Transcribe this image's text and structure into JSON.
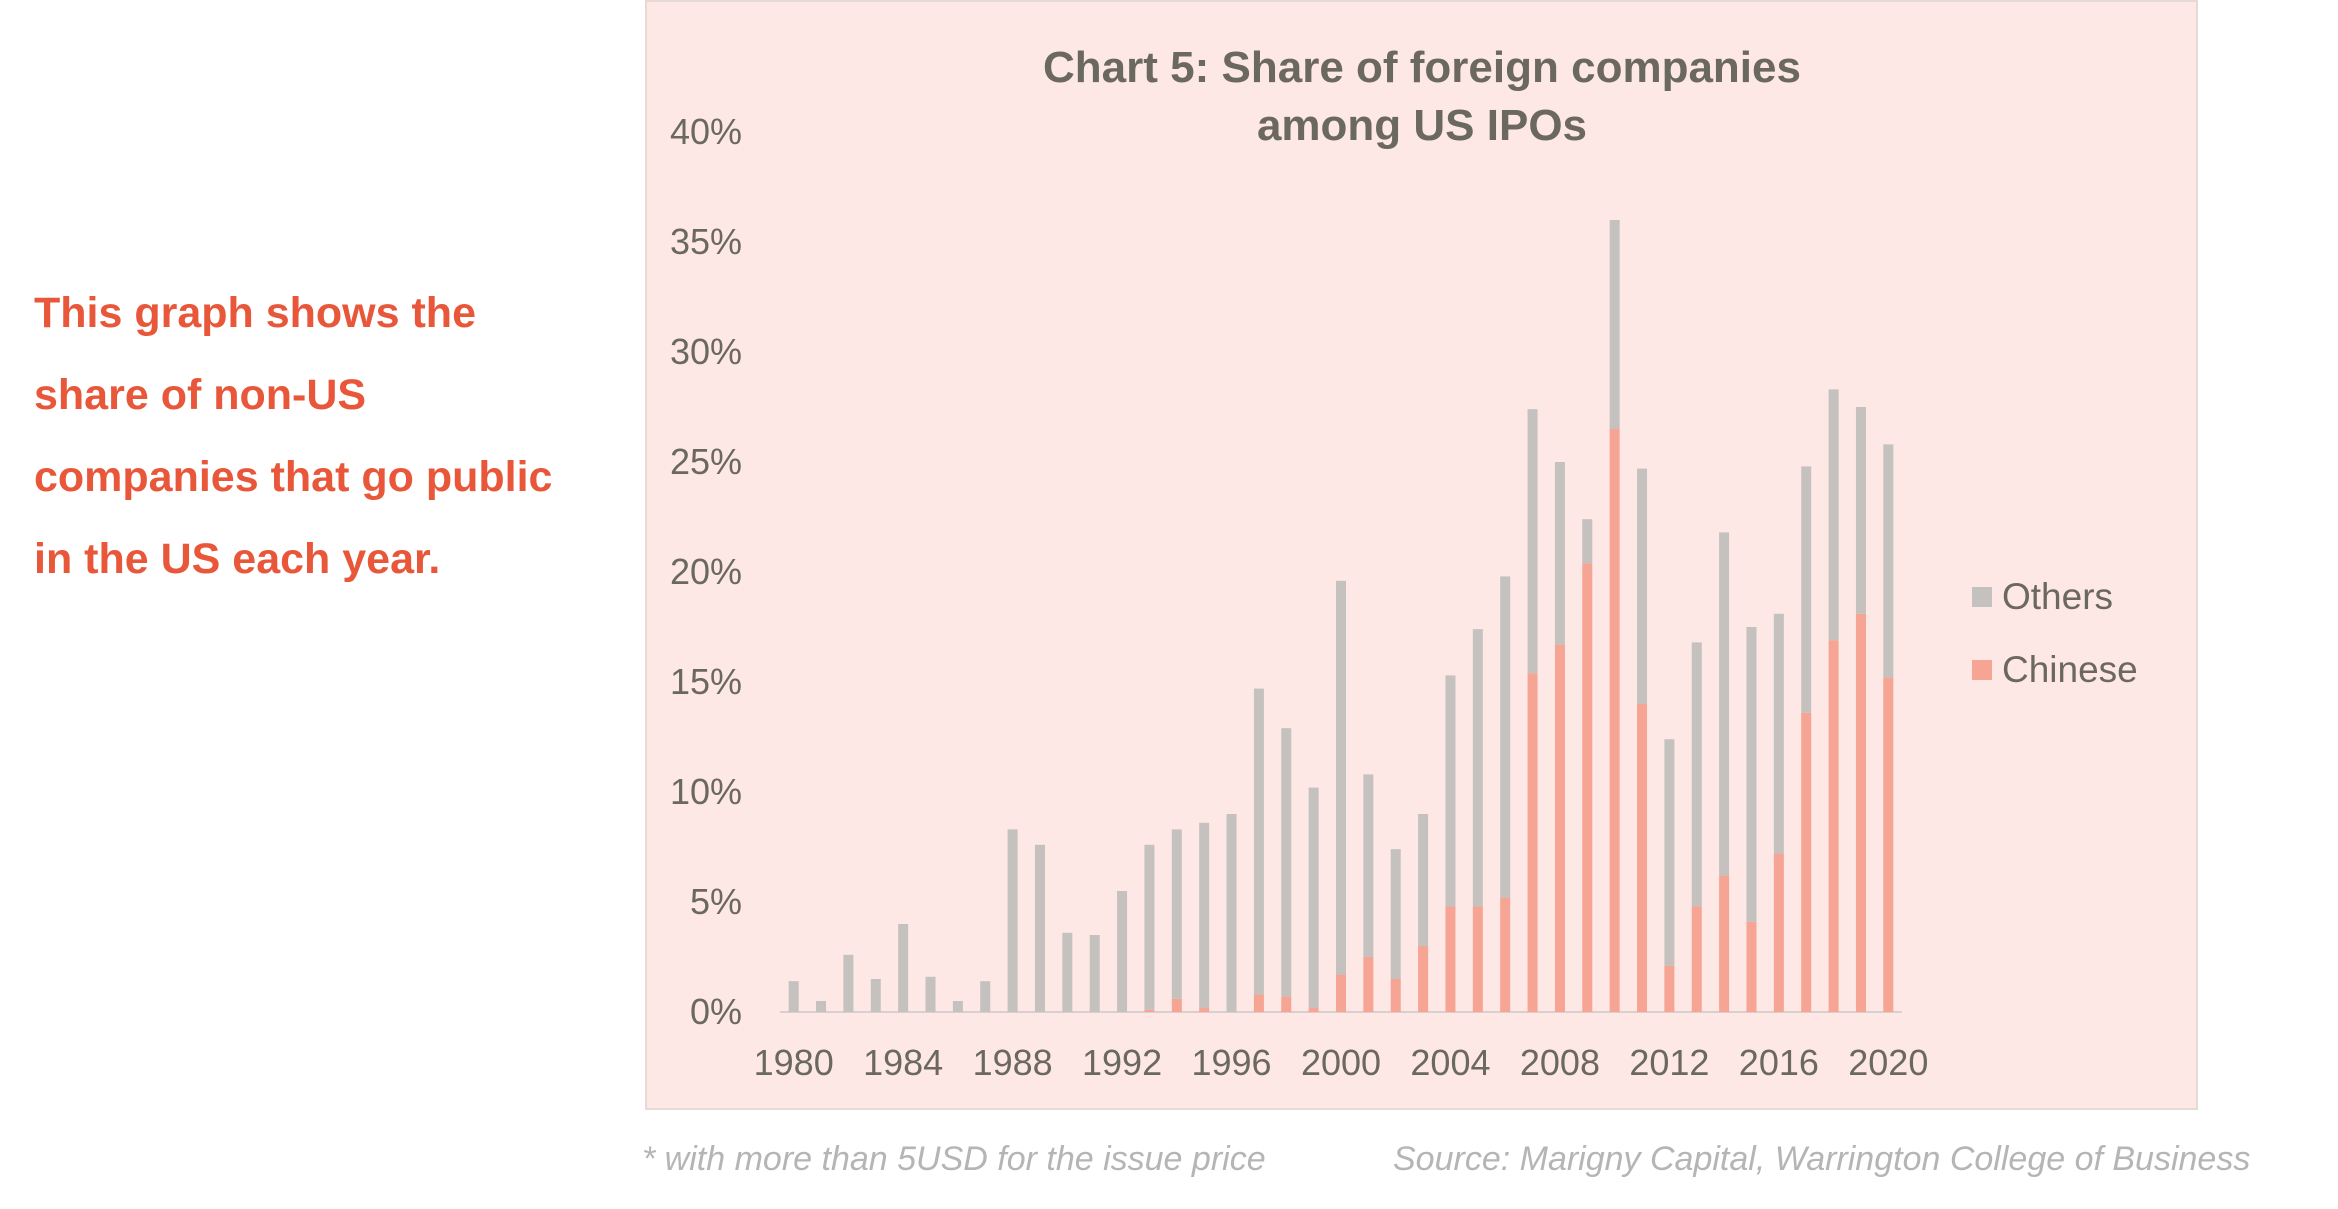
{
  "side_text": "This graph shows the share of non-US companies that go public in the US each year.",
  "footnote_left": "* with more than 5USD for the issue price",
  "footnote_right": "Source: Marigny Capital, Warrington College of Business",
  "colors": {
    "others": "#c4c1bf",
    "chinese": "#f6a493",
    "panel_bg": "#fde8e6",
    "accent_text": "#e8573a",
    "axis_text": "#6b6860"
  },
  "chart_data": {
    "type": "bar",
    "stacked": true,
    "title": "Chart 5: Share of foreign companies among US IPOs",
    "title_lines": [
      "Chart 5: Share of foreign companies",
      "among US IPOs"
    ],
    "xlabel": "",
    "ylabel": "",
    "ylim": [
      0,
      0.4
    ],
    "yticks": [
      0,
      0.05,
      0.1,
      0.15,
      0.2,
      0.25,
      0.3,
      0.35,
      0.4
    ],
    "ytick_labels": [
      "0%",
      "5%",
      "10%",
      "15%",
      "20%",
      "25%",
      "30%",
      "35%",
      "40%"
    ],
    "xtick_labels": [
      "1980",
      "1984",
      "1988",
      "1992",
      "1996",
      "2000",
      "2004",
      "2008",
      "2012",
      "2016",
      "2020"
    ],
    "legend_position": "right",
    "categories": [
      1980,
      1981,
      1982,
      1983,
      1984,
      1985,
      1986,
      1987,
      1988,
      1989,
      1990,
      1991,
      1992,
      1993,
      1994,
      1995,
      1996,
      1997,
      1998,
      1999,
      2000,
      2001,
      2002,
      2003,
      2004,
      2005,
      2006,
      2007,
      2008,
      2009,
      2010,
      2011,
      2012,
      2013,
      2014,
      2015,
      2016,
      2017,
      2018,
      2019,
      2020
    ],
    "series": [
      {
        "name": "Chinese",
        "values": [
          0,
          0,
          0,
          0,
          0,
          0,
          0,
          0,
          0,
          0,
          0,
          0,
          0,
          0.001,
          0.006,
          0.002,
          0,
          0.008,
          0.007,
          0.002,
          0.017,
          0.025,
          0.015,
          0.03,
          0.048,
          0.048,
          0.052,
          0.154,
          0.167,
          0.204,
          0.265,
          0.14,
          0.021,
          0.048,
          0.062,
          0.041,
          0.072,
          0.136,
          0.169,
          0.181,
          0.152
        ]
      },
      {
        "name": "Others",
        "values": [
          0.014,
          0.005,
          0.026,
          0.015,
          0.04,
          0.016,
          0.005,
          0.014,
          0.083,
          0.076,
          0.036,
          0.035,
          0.055,
          0.075,
          0.077,
          0.084,
          0.09,
          0.139,
          0.122,
          0.1,
          0.179,
          0.083,
          0.059,
          0.06,
          0.105,
          0.126,
          0.146,
          0.12,
          0.083,
          0.02,
          0.095,
          0.107,
          0.103,
          0.12,
          0.156,
          0.134,
          0.109,
          0.112,
          0.114,
          0.094,
          0.106
        ]
      }
    ]
  }
}
